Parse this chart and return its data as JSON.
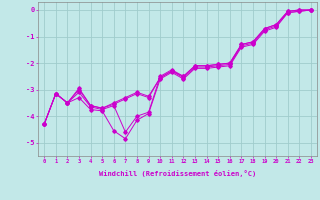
{
  "xlabel": "Windchill (Refroidissement éolien,°C)",
  "bg_color": "#c2e8e8",
  "grid_color": "#a0cccc",
  "line_color": "#cc00cc",
  "xlim": [
    -0.5,
    23.5
  ],
  "ylim": [
    -5.5,
    0.3
  ],
  "yticks": [
    0,
    -1,
    -2,
    -3,
    -4,
    -5
  ],
  "xticks": [
    0,
    1,
    2,
    3,
    4,
    5,
    6,
    7,
    8,
    9,
    10,
    11,
    12,
    13,
    14,
    15,
    16,
    17,
    18,
    19,
    20,
    21,
    22,
    23
  ],
  "series1": [
    [
      0,
      -4.3
    ],
    [
      1,
      -3.15
    ],
    [
      2,
      -3.5
    ],
    [
      3,
      -3.3
    ],
    [
      4,
      -3.75
    ],
    [
      5,
      -3.8
    ],
    [
      6,
      -4.55
    ],
    [
      7,
      -4.85
    ],
    [
      8,
      -4.15
    ],
    [
      9,
      -3.9
    ],
    [
      10,
      -2.6
    ],
    [
      11,
      -2.35
    ],
    [
      12,
      -2.6
    ],
    [
      13,
      -2.2
    ],
    [
      14,
      -2.2
    ],
    [
      15,
      -2.15
    ],
    [
      16,
      -2.1
    ],
    [
      17,
      -1.4
    ],
    [
      18,
      -1.3
    ],
    [
      19,
      -0.8
    ],
    [
      20,
      -0.65
    ],
    [
      21,
      -0.1
    ],
    [
      22,
      -0.05
    ],
    [
      23,
      0.0
    ]
  ],
  "series2": [
    [
      0,
      -4.3
    ],
    [
      1,
      -3.15
    ],
    [
      2,
      -3.5
    ],
    [
      3,
      -3.0
    ],
    [
      4,
      -3.6
    ],
    [
      5,
      -3.7
    ],
    [
      6,
      -3.55
    ],
    [
      7,
      -3.35
    ],
    [
      8,
      -3.15
    ],
    [
      9,
      -3.3
    ],
    [
      10,
      -2.55
    ],
    [
      11,
      -2.3
    ],
    [
      12,
      -2.55
    ],
    [
      13,
      -2.15
    ],
    [
      14,
      -2.15
    ],
    [
      15,
      -2.1
    ],
    [
      16,
      -2.05
    ],
    [
      17,
      -1.35
    ],
    [
      18,
      -1.25
    ],
    [
      19,
      -0.75
    ],
    [
      20,
      -0.6
    ],
    [
      21,
      -0.1
    ],
    [
      22,
      -0.05
    ],
    [
      23,
      0.0
    ]
  ],
  "series3": [
    [
      0,
      -4.3
    ],
    [
      1,
      -3.15
    ],
    [
      2,
      -3.5
    ],
    [
      3,
      -3.1
    ],
    [
      4,
      -3.65
    ],
    [
      5,
      -3.75
    ],
    [
      6,
      -3.6
    ],
    [
      7,
      -4.6
    ],
    [
      8,
      -4.0
    ],
    [
      9,
      -3.85
    ],
    [
      10,
      -2.5
    ],
    [
      11,
      -2.25
    ],
    [
      12,
      -2.5
    ],
    [
      13,
      -2.1
    ],
    [
      14,
      -2.1
    ],
    [
      15,
      -2.05
    ],
    [
      16,
      -2.0
    ],
    [
      17,
      -1.3
    ],
    [
      18,
      -1.2
    ],
    [
      19,
      -0.7
    ],
    [
      20,
      -0.55
    ],
    [
      21,
      -0.05
    ],
    [
      22,
      0.0
    ],
    [
      23,
      0.0
    ]
  ],
  "series4": [
    [
      0,
      -4.3
    ],
    [
      1,
      -3.15
    ],
    [
      2,
      -3.5
    ],
    [
      3,
      -2.95
    ],
    [
      4,
      -3.6
    ],
    [
      5,
      -3.7
    ],
    [
      6,
      -3.5
    ],
    [
      7,
      -3.3
    ],
    [
      8,
      -3.1
    ],
    [
      9,
      -3.25
    ],
    [
      10,
      -2.55
    ],
    [
      11,
      -2.3
    ],
    [
      12,
      -2.5
    ],
    [
      13,
      -2.1
    ],
    [
      14,
      -2.1
    ],
    [
      15,
      -2.05
    ],
    [
      16,
      -2.0
    ],
    [
      17,
      -1.3
    ],
    [
      18,
      -1.2
    ],
    [
      19,
      -0.7
    ],
    [
      20,
      -0.55
    ],
    [
      21,
      -0.05
    ],
    [
      22,
      0.0
    ],
    [
      23,
      0.0
    ]
  ]
}
